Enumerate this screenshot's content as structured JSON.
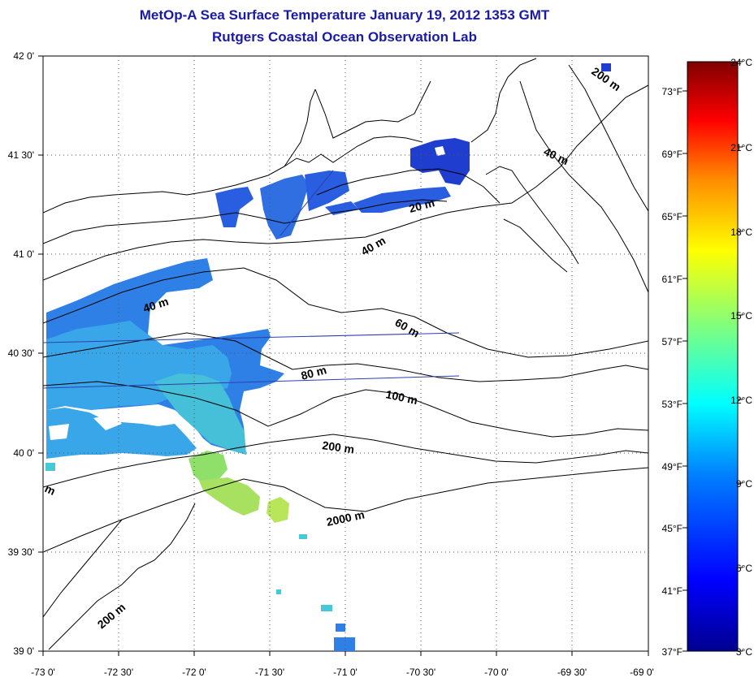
{
  "title": {
    "line1": "MetOp-A Sea Surface Temperature January 19, 2012 1353 GMT",
    "line2": "Rutgers Coastal Ocean Observation Lab"
  },
  "axes": {
    "lon_labels": [
      "-73 0'",
      "-72 30'",
      "-72 0'",
      "-71 30'",
      "-71 0'",
      "-70 30'",
      "-70 0'",
      "-69 30'",
      "-69 0'"
    ],
    "lat_labels": [
      "42 0'",
      "41 30'",
      "41 0'",
      "40 30'",
      "40 0'",
      "39 30'",
      "39 0'"
    ]
  },
  "depth_labels": [
    "20 m",
    "40 m",
    "40 m",
    "40 m",
    "60 m",
    "80 m",
    "100 m",
    "200 m",
    "2000 m",
    "200 m",
    "200 m",
    "m"
  ],
  "colorbar": {
    "celsius": [
      "24°C",
      "21°C",
      "18°C",
      "15°C",
      "12°C",
      "9°C",
      "6°C",
      "3°C"
    ],
    "fahrenheit": [
      "73°F",
      "69°F",
      "65°F",
      "61°F",
      "57°F",
      "53°F",
      "49°F",
      "45°F",
      "41°F",
      "37°F"
    ],
    "colors": [
      "#7f0000",
      "#ff0000",
      "#ff8c00",
      "#ffff00",
      "#7fff7f",
      "#00ffff",
      "#0080ff",
      "#0000ff",
      "#00008f"
    ]
  },
  "colors": {
    "title": "#1a1aa8",
    "sst_cold": "#1f44d6",
    "sst_mid": "#2f8fe8",
    "sst_warm": "#46c8d8",
    "sst_warmest": "#a8e060"
  }
}
